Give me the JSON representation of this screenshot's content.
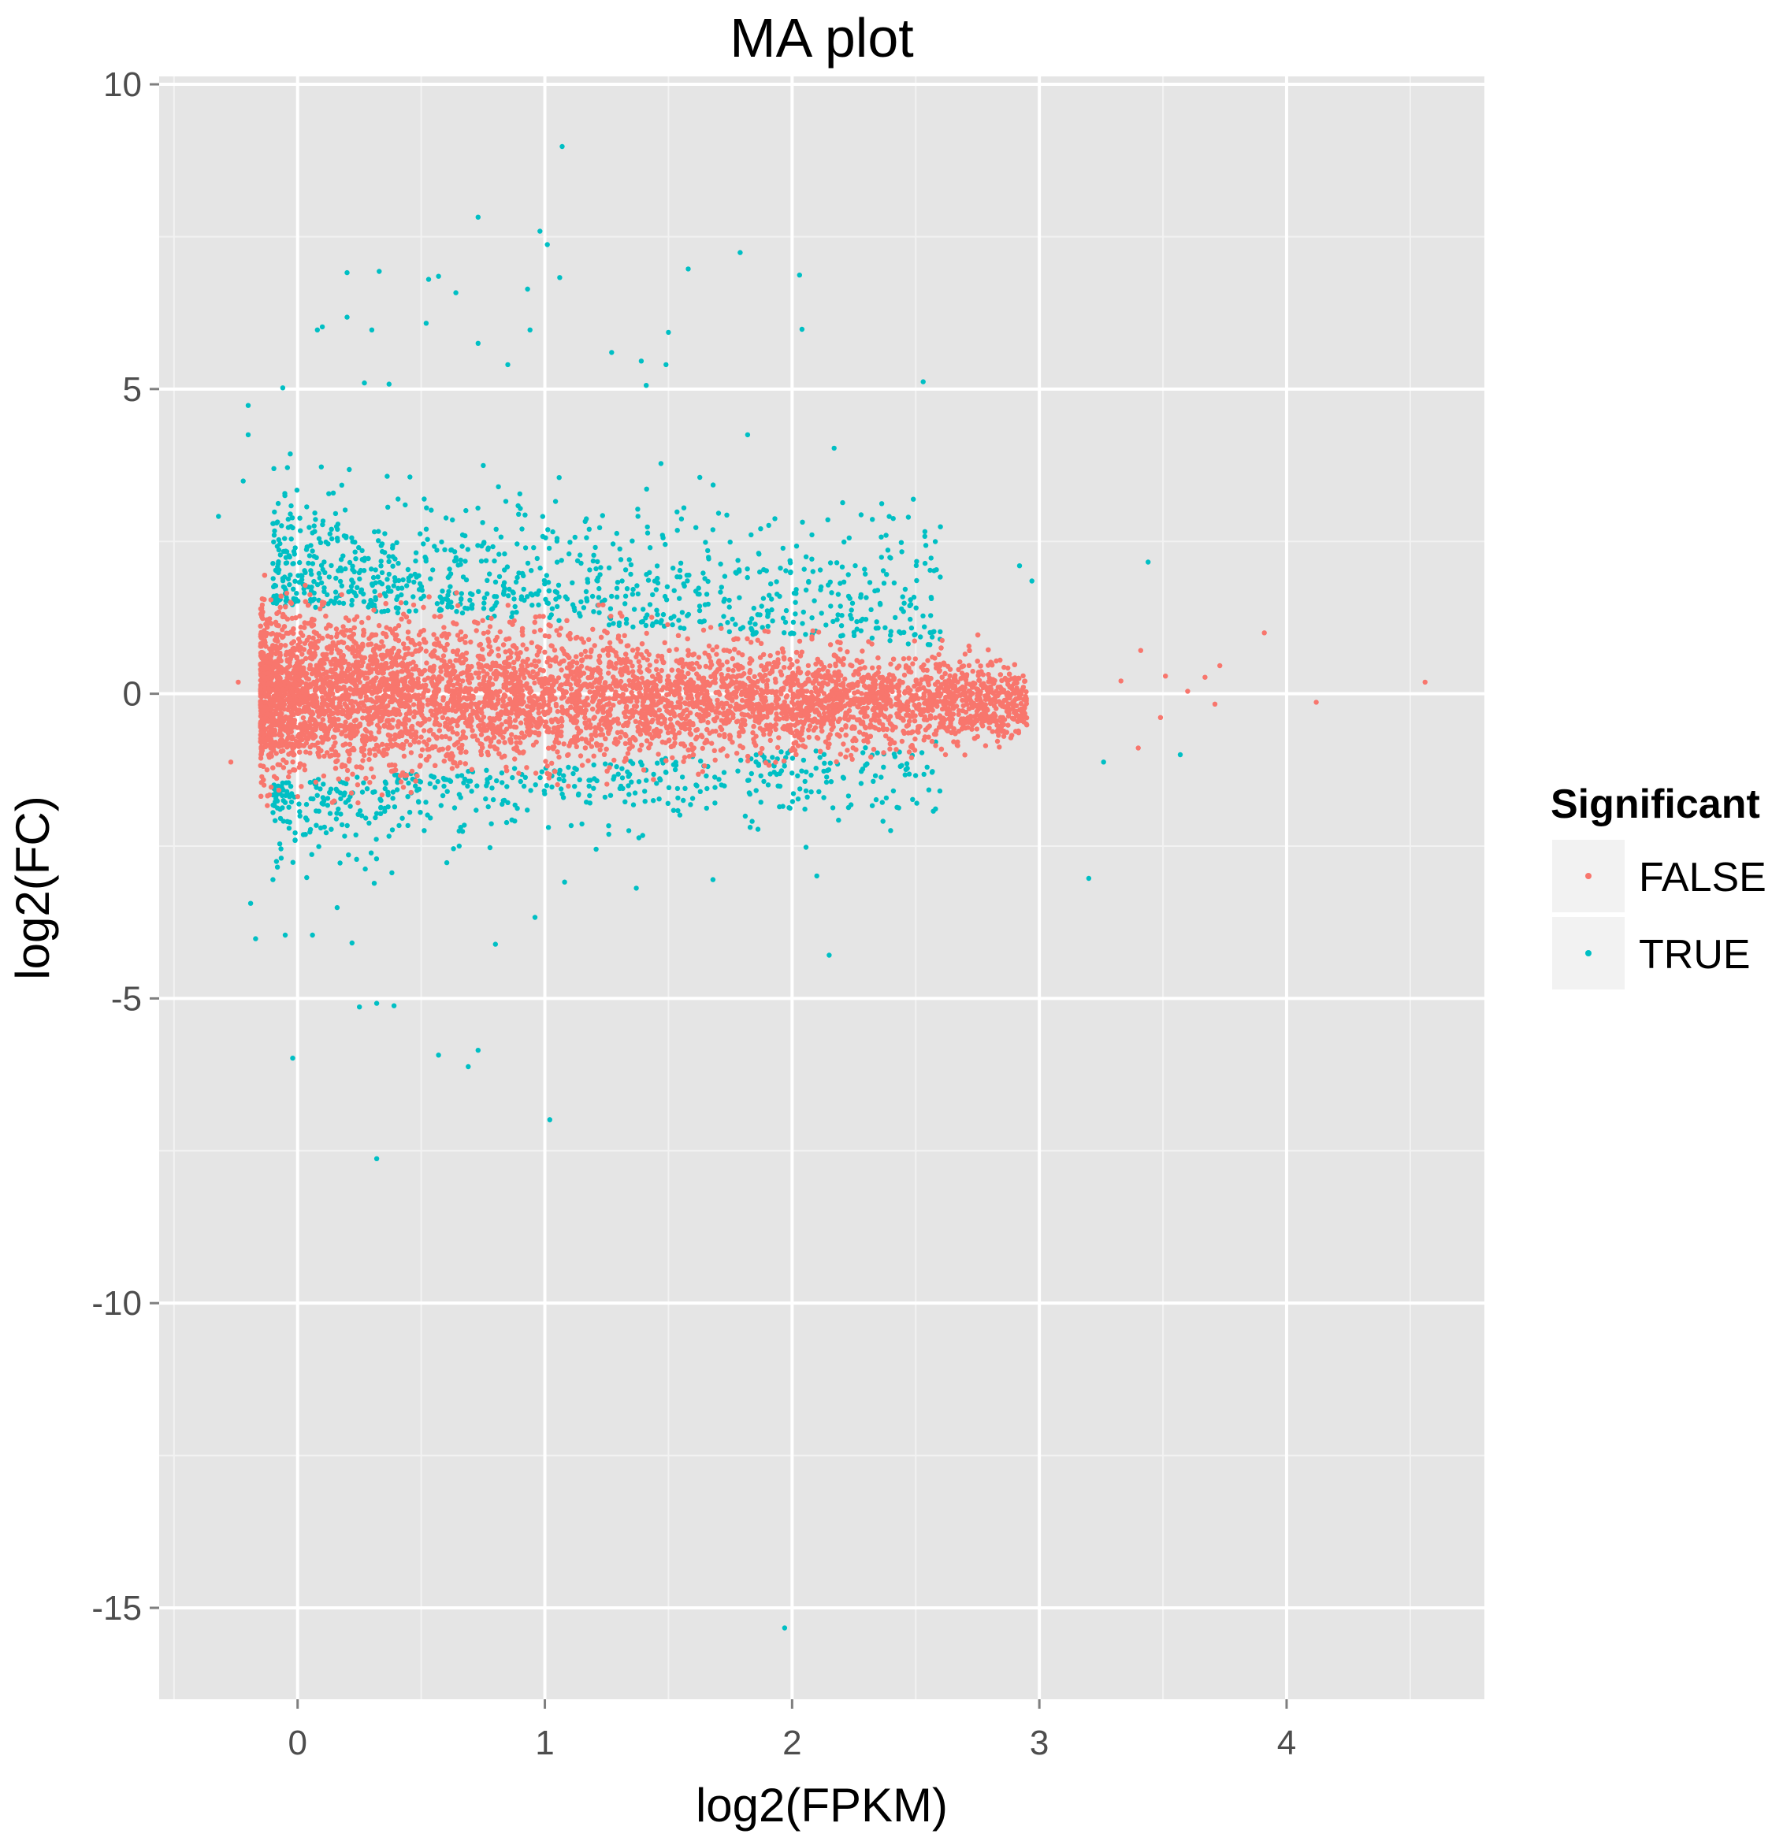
{
  "chart_data": {
    "type": "scatter",
    "title": "MA plot",
    "xlabel": "log2(FPKM)",
    "ylabel": "log2(FC)",
    "xlim": [
      -0.56,
      4.8
    ],
    "ylim": [
      -16.5,
      10.13
    ],
    "x_ticks": [
      0,
      1,
      2,
      3,
      4
    ],
    "y_ticks": [
      10,
      5,
      0,
      -5,
      -10,
      -15
    ],
    "grid": true,
    "legend": {
      "title": "Significant",
      "placement": "right",
      "entries": [
        {
          "label": "FALSE",
          "color": "#F8766D"
        },
        {
          "label": "TRUE",
          "color": "#00BFC4"
        }
      ]
    },
    "colors": {
      "FALSE": "#F8766D",
      "TRUE": "#00BFC4",
      "panel": "#E5E5E5",
      "grid_major": "#FFFFFF",
      "grid_minor": "#F2F2F2"
    },
    "note_dense_core": "Dense core of points centered on log2(FC)=0 spanning log2(FPKM) about -0.15 to 3, spread narrowing with increasing log2(FPKM)",
    "series": [
      {
        "name": "TRUE",
        "points": [
          [
            1.07,
            8.98
          ],
          [
            0.73,
            7.82
          ],
          [
            0.98,
            7.59
          ],
          [
            1.01,
            7.37
          ],
          [
            1.79,
            7.24
          ],
          [
            1.58,
            6.97
          ],
          [
            0.2,
            6.91
          ],
          [
            0.33,
            6.93
          ],
          [
            2.03,
            6.87
          ],
          [
            1.06,
            6.83
          ],
          [
            0.57,
            6.85
          ],
          [
            0.53,
            6.8
          ],
          [
            0.93,
            6.64
          ],
          [
            0.64,
            6.58
          ],
          [
            0.2,
            6.18
          ],
          [
            0.52,
            6.08
          ],
          [
            0.1,
            6.02
          ],
          [
            0.08,
            5.97
          ],
          [
            0.3,
            5.97
          ],
          [
            0.94,
            5.97
          ],
          [
            2.04,
            5.98
          ],
          [
            0.73,
            5.75
          ],
          [
            1.27,
            5.6
          ],
          [
            1.39,
            5.46
          ],
          [
            1.5,
            5.93
          ],
          [
            0.85,
            5.4
          ],
          [
            1.49,
            5.4
          ],
          [
            2.53,
            5.12
          ],
          [
            1.41,
            5.06
          ],
          [
            0.27,
            5.1
          ],
          [
            0.37,
            5.08
          ],
          [
            -0.06,
            5.02
          ],
          [
            -0.2,
            4.73
          ],
          [
            -0.2,
            4.25
          ],
          [
            1.82,
            4.25
          ],
          [
            2.17,
            4.03
          ],
          [
            -0.32,
            2.91
          ],
          [
            -0.22,
            3.49
          ],
          [
            3.44,
            2.16
          ],
          [
            2.92,
            2.1
          ],
          [
            2.97,
            1.85
          ],
          [
            2.6,
            2.74
          ],
          [
            2.38,
            2.6
          ],
          [
            2.21,
            2.49
          ],
          [
            -0.19,
            -3.44
          ],
          [
            -0.17,
            -4.02
          ],
          [
            -0.05,
            -3.96
          ],
          [
            0.06,
            -3.96
          ],
          [
            0.16,
            -3.51
          ],
          [
            0.22,
            -4.09
          ],
          [
            -0.02,
            -5.98
          ],
          [
            0.25,
            -5.14
          ],
          [
            0.32,
            -5.08
          ],
          [
            0.39,
            -5.12
          ],
          [
            0.57,
            -5.93
          ],
          [
            0.73,
            -5.85
          ],
          [
            0.69,
            -6.12
          ],
          [
            0.32,
            -7.63
          ],
          [
            1.02,
            -6.99
          ],
          [
            1.97,
            -15.33
          ],
          [
            2.15,
            -4.29
          ],
          [
            3.2,
            -3.03
          ],
          [
            0.8,
            -4.11
          ],
          [
            0.96,
            -3.67
          ],
          [
            0.31,
            -3.11
          ],
          [
            -0.1,
            -3.05
          ],
          [
            1.68,
            -3.05
          ],
          [
            2.1,
            -2.99
          ],
          [
            1.37,
            -3.19
          ],
          [
            1.08,
            -3.09
          ],
          [
            2.58,
            -1.89
          ],
          [
            3.57,
            -1.0
          ],
          [
            3.26,
            -1.12
          ]
        ]
      },
      {
        "name": "FALSE",
        "points": [
          [
            4.56,
            0.19
          ],
          [
            4.12,
            -0.14
          ],
          [
            3.91,
            1.0
          ],
          [
            3.73,
            0.46
          ],
          [
            3.67,
            0.27
          ],
          [
            3.71,
            -0.17
          ],
          [
            3.6,
            0.04
          ],
          [
            3.51,
            0.29
          ],
          [
            3.49,
            -0.39
          ],
          [
            3.41,
            0.71
          ],
          [
            3.4,
            -0.89
          ],
          [
            3.33,
            0.21
          ],
          [
            -0.24,
            0.19
          ],
          [
            -0.27,
            -1.12
          ]
        ]
      }
    ]
  }
}
